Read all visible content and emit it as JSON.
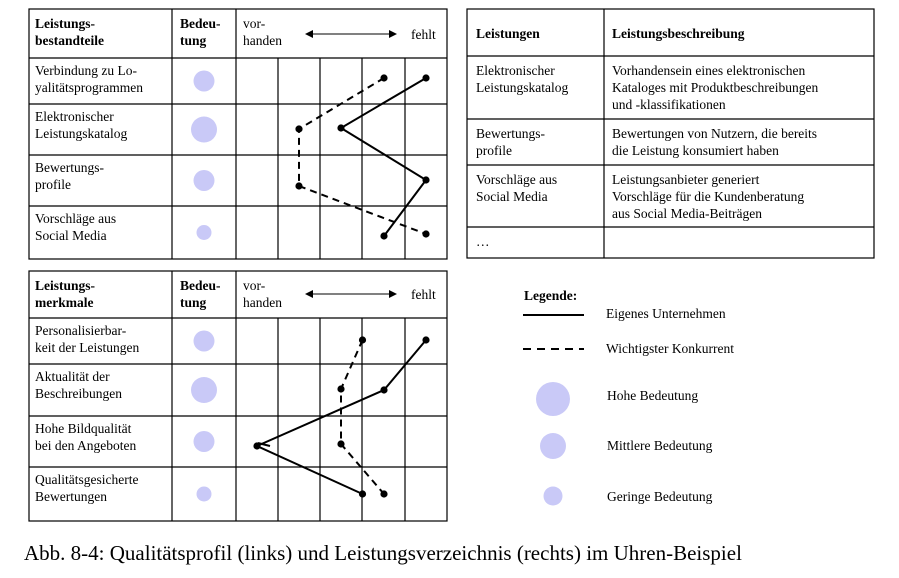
{
  "colors": {
    "bubble": "#c9c9f7",
    "line": "#000000"
  },
  "profile1": {
    "headers": {
      "col1": "Leistungs-\nbestandteile",
      "col2": "Bedeu-\ntung",
      "left": "vor-\nhanden",
      "right": "fehlt"
    },
    "rows": [
      {
        "label": "Verbindung zu Lo-\nyalitätsprogrammen",
        "importance": "mittel",
        "own": 5,
        "competitor": 4
      },
      {
        "label": "Elektronischer\nLeistungskatalog",
        "importance": "hoch",
        "own": 3,
        "competitor": 2
      },
      {
        "label": "Bewertungs-\nprofile",
        "importance": "mittel",
        "own": 5,
        "competitor": 2
      },
      {
        "label": "Vorschläge aus\nSocial Media",
        "importance": "gering",
        "own": 4,
        "competitor": 5
      }
    ]
  },
  "profile2": {
    "headers": {
      "col1": "Leistungs-\nmerkmale",
      "col2": "Bedeu-\ntung",
      "left": "vor-\nhanden",
      "right": "fehlt"
    },
    "rows": [
      {
        "label": "Personalisierbar-\nkeit der Leistungen",
        "importance": "mittel",
        "own": 5,
        "competitor": 3.5
      },
      {
        "label": "Aktualität der\nBeschreibungen",
        "importance": "hoch",
        "own": 4,
        "competitor": 3
      },
      {
        "label": "Hohe Bildqualität\nbei den Angeboten",
        "importance": "mittel",
        "own": 1,
        "competitor": 3
      },
      {
        "label": "Qualitätsgesicherte\nBewertungen",
        "importance": "gering",
        "own": 3.5,
        "competitor": 4
      }
    ]
  },
  "services": {
    "headers": [
      "Leistungen",
      "Leistungsbeschreibung"
    ],
    "rows": [
      [
        "Elektronischer\nLeistungskatalog",
        "Vorhandensein eines elektronischen\nKataloges mit Produktbeschreibungen\nund -klassifikationen"
      ],
      [
        "Bewertungs-\nprofile",
        "Bewertungen von Nutzern, die bereits\ndie Leistung konsumiert haben"
      ],
      [
        "Vorschläge aus\nSocial Media",
        "Leistungsanbieter generiert\nVorschläge für die Kundenberatung\naus Social Media-Beiträgen"
      ],
      [
        "…",
        ""
      ]
    ]
  },
  "legend": {
    "title": "Legende:",
    "own_company": "Eigenes Unternehmen",
    "competitor": "Wichtigster  Konkurrent",
    "high": "Hohe Bedeutung",
    "medium": "Mittlere Bedeutung",
    "low": "Geringe Bedeutung"
  },
  "caption": "Abb. 8-4: Qualitätsprofil (links) und Leistungsverzeichnis (rechts) im Uhren-Beispiel"
}
